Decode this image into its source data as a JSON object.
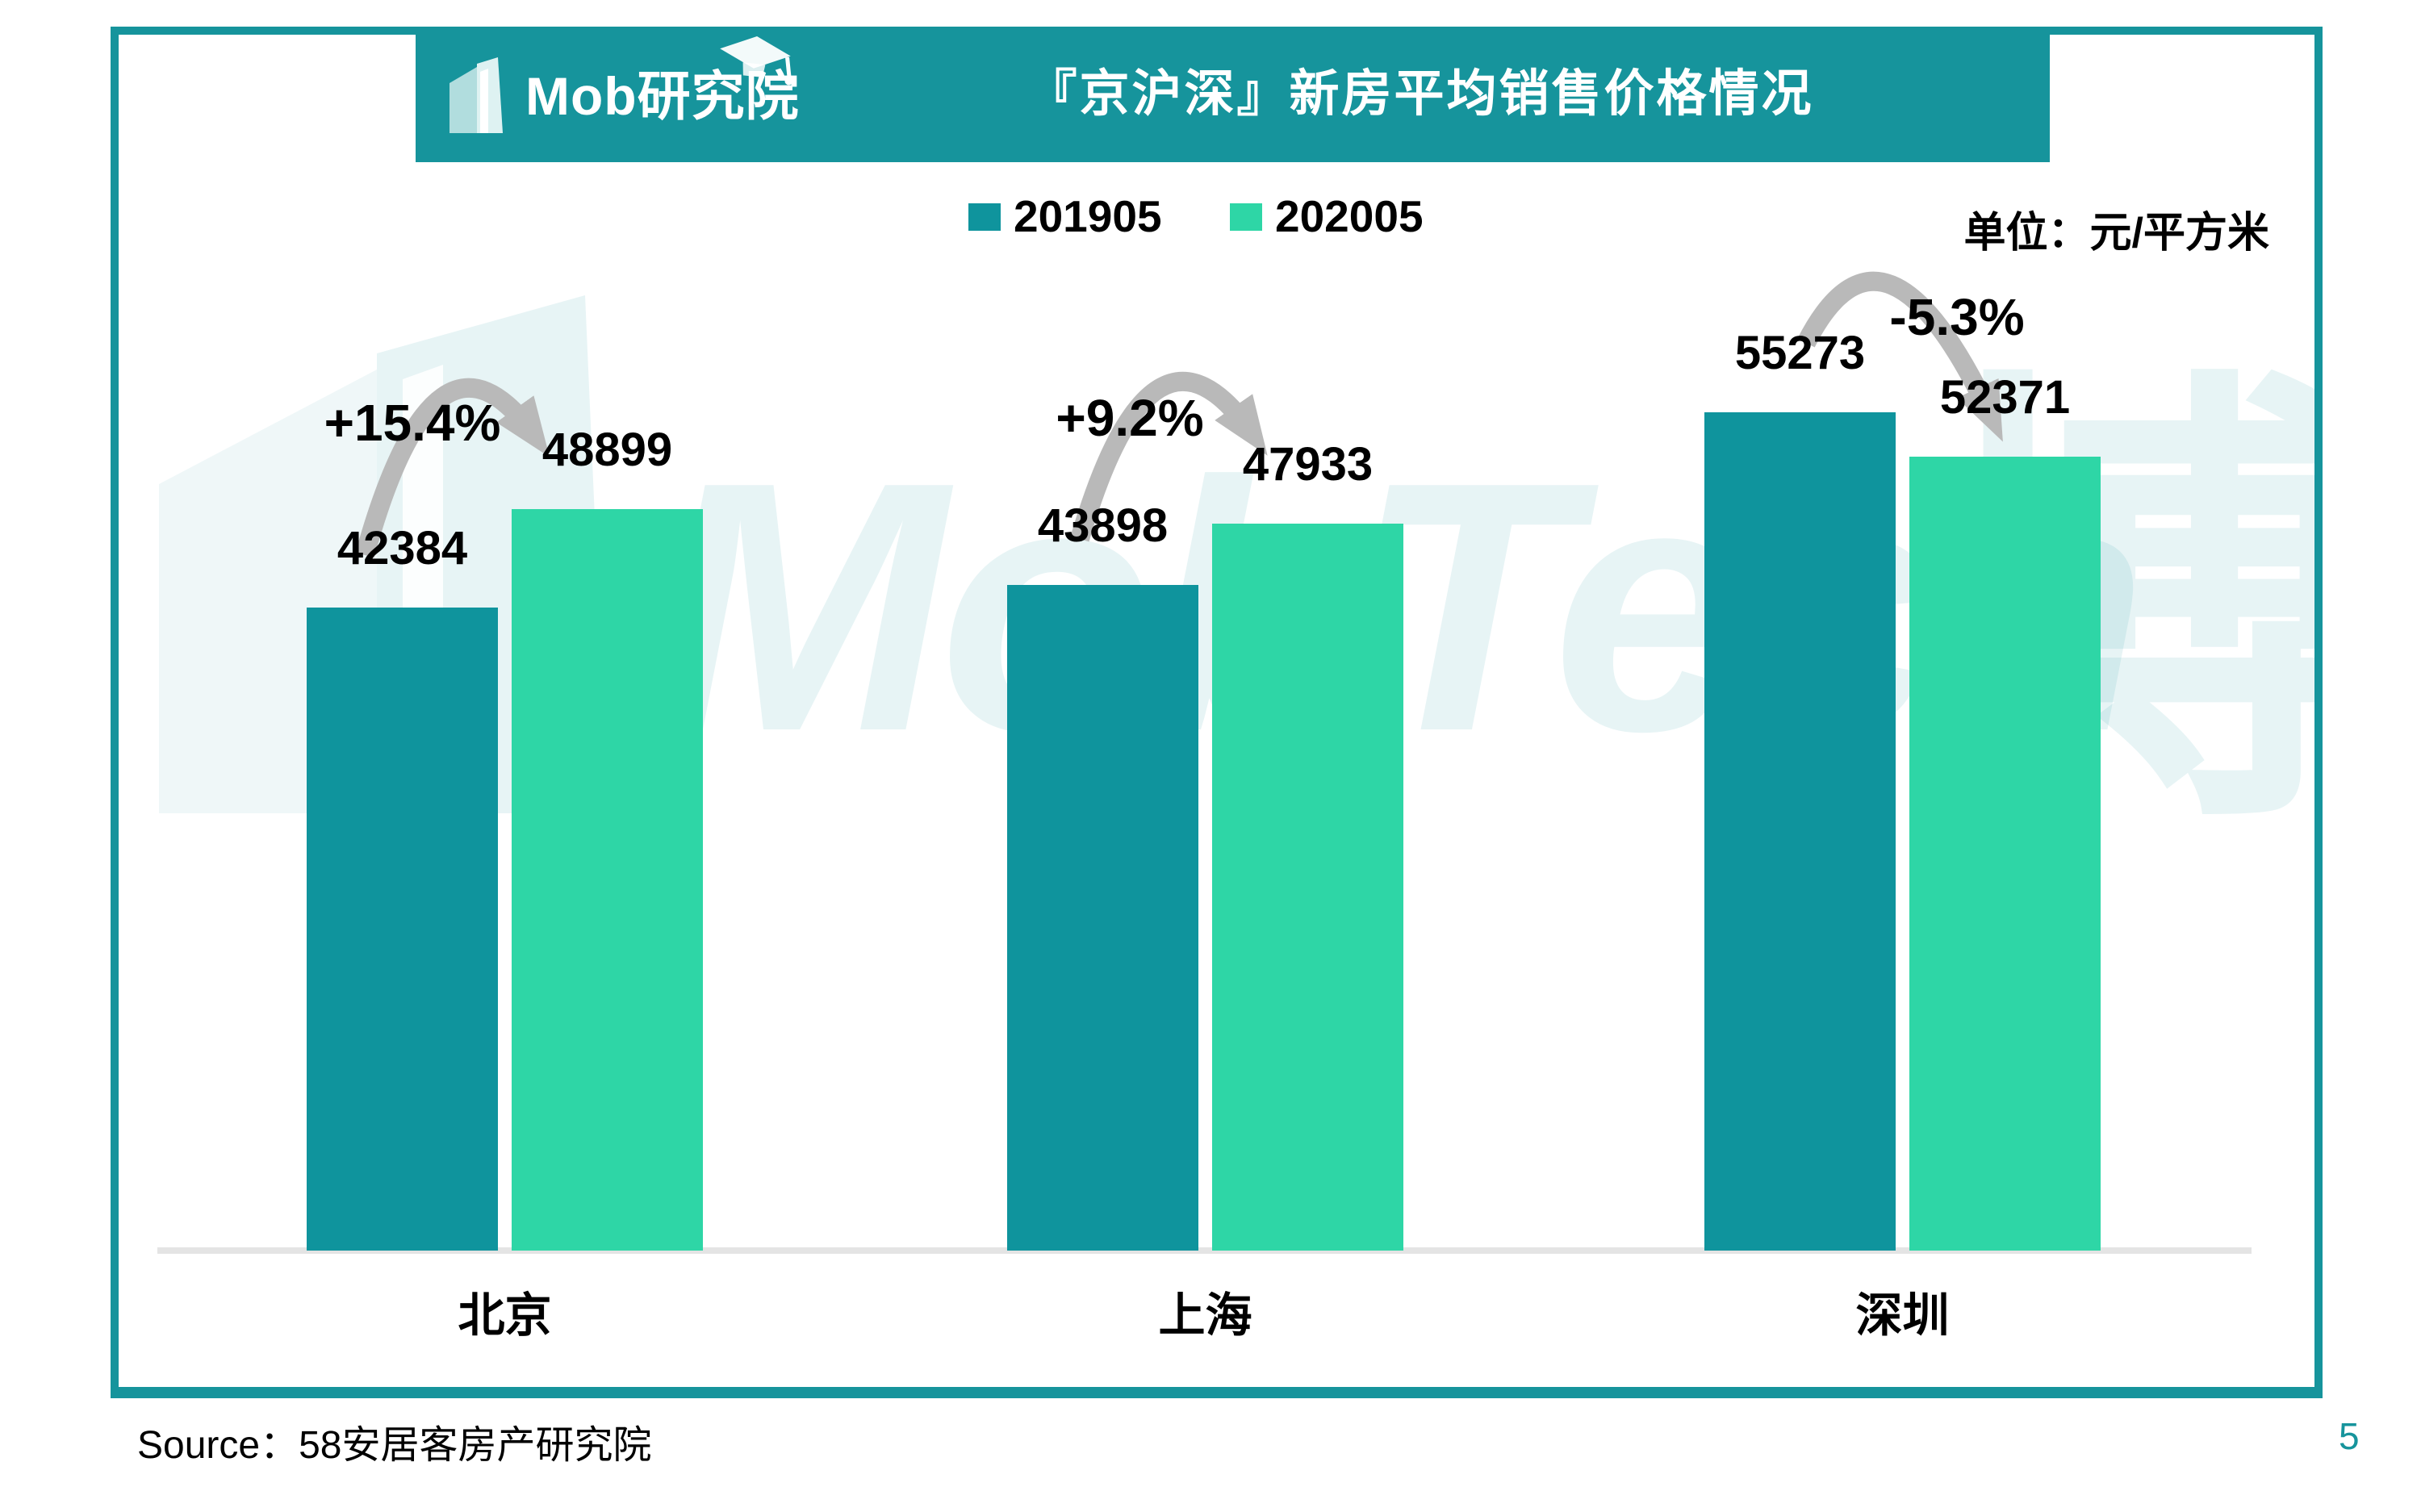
{
  "header": {
    "logo_text": "Mob研究院",
    "title": "『京沪深』新房平均销售价格情况",
    "banner_color": "#16949C"
  },
  "legend": {
    "items": [
      {
        "label": "201905",
        "color": "#0F949D"
      },
      {
        "label": "202005",
        "color": "#2ED6A6"
      }
    ],
    "unit_label": "单位：元/平方米"
  },
  "chart_data": {
    "type": "bar",
    "title": "『京沪深』新房平均销售价格情况",
    "unit": "元/平方米",
    "categories": [
      "北京",
      "上海",
      "深圳"
    ],
    "series": [
      {
        "name": "201905",
        "color": "#0F949D",
        "values": [
          42384,
          43898,
          55273
        ]
      },
      {
        "name": "202005",
        "color": "#2ED6A6",
        "values": [
          48899,
          47933,
          52371
        ]
      }
    ],
    "change_labels": [
      "+15.4%",
      "+9.2%",
      "-5.3%"
    ],
    "ylim": [
      0,
      56000
    ],
    "grid": false,
    "legend_position": "top",
    "baseline_color": "#E4E4E4",
    "annotation_arrow_color": "#B9B9B9"
  },
  "watermark": {
    "brand_text": "MobTech",
    "cjk_text": "博"
  },
  "footer": {
    "source": "Source：58安居客房产研究院",
    "page_number": "5",
    "page_number_color": "#16949C"
  }
}
